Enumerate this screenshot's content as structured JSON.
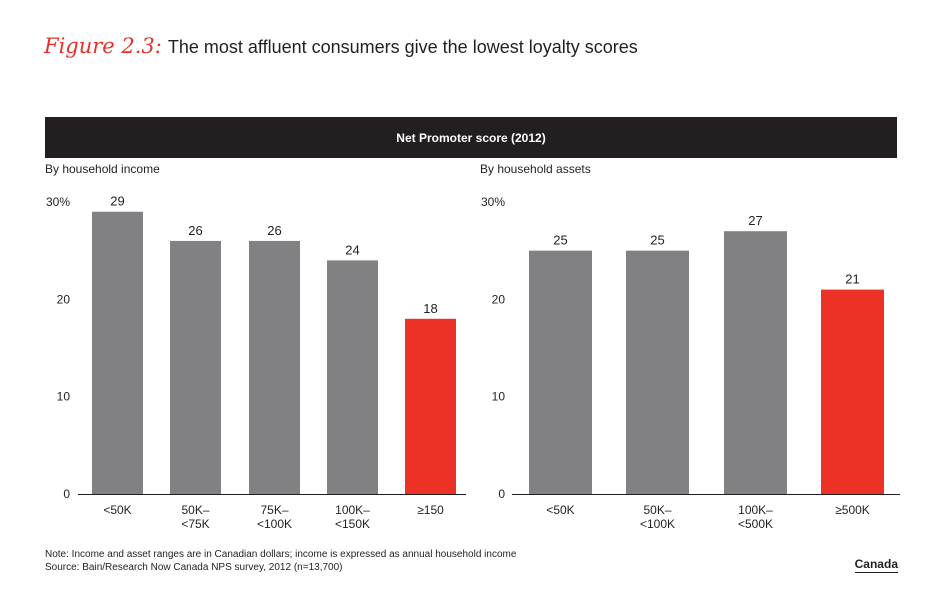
{
  "figure": {
    "label": "Figure 2.3:",
    "title": "The most affluent consumers give the lowest loyalty scores"
  },
  "header": {
    "title": "Net Promoter score (2012)"
  },
  "colors": {
    "default_bar": "#818083",
    "highlight_bar": "#ec3227",
    "text": "#231f20",
    "header_bg": "#231f20"
  },
  "chart_data": [
    {
      "type": "bar",
      "title": "By household income",
      "categories": [
        "<50K",
        "50K–\n<75K",
        "75K–\n<100K",
        "100K–\n<150K",
        "≥150"
      ],
      "values": [
        29,
        26,
        26,
        24,
        18
      ],
      "data_labels": [
        "29",
        "26",
        "26",
        "24",
        "18"
      ],
      "highlight_index": 4,
      "ylim": [
        0,
        30
      ],
      "yticks": [
        0,
        10,
        20,
        30
      ],
      "ytick_labels": [
        "0",
        "10",
        "20",
        "30%"
      ],
      "xlabel": "",
      "ylabel": ""
    },
    {
      "type": "bar",
      "title": "By household assets",
      "categories": [
        "<50K",
        "50K–\n<100K",
        "100K–\n<500K",
        "≥500K"
      ],
      "values": [
        25,
        25,
        27,
        21
      ],
      "data_labels": [
        "25",
        "25",
        "27",
        "21"
      ],
      "highlight_index": 3,
      "ylim": [
        0,
        30
      ],
      "yticks": [
        0,
        10,
        20,
        30
      ],
      "ytick_labels": [
        "0",
        "10",
        "20",
        "30%"
      ],
      "xlabel": "",
      "ylabel": ""
    }
  ],
  "footer": {
    "note": "Note: Income and asset ranges are in Canadian dollars; income is expressed as annual household income",
    "source": "Source: Bain/Research Now Canada NPS survey, 2012 (n=13,700)",
    "region": "Canada"
  }
}
